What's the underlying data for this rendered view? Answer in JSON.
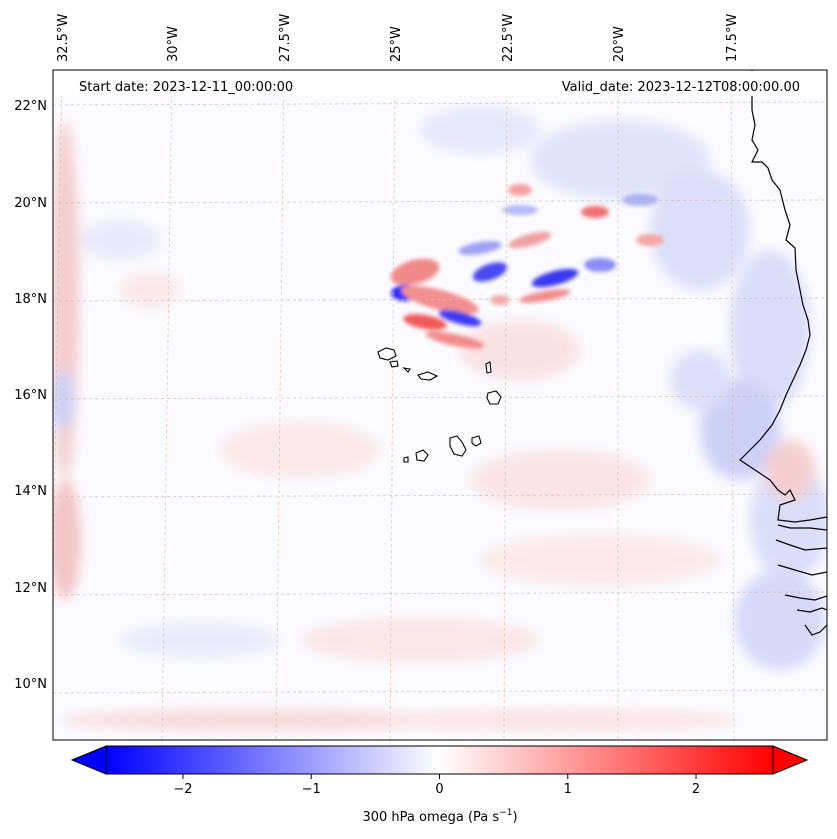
{
  "header": {
    "start_label": "Start date: 2023-12-11_00:00:00",
    "valid_label": "Valid_date: 2023-12-12T08:00:00.00"
  },
  "axes": {
    "lon_labels": [
      "32.5°W",
      "30°W",
      "27.5°W",
      "25°W",
      "22.5°W",
      "20°W",
      "17.5°W"
    ],
    "lat_labels": [
      "22°N",
      "20°N",
      "18°N",
      "16°N",
      "14°N",
      "12°N",
      "10°N"
    ]
  },
  "colorbar": {
    "tick_labels": [
      "−2",
      "−1",
      "0",
      "1",
      "2"
    ],
    "ticks": [
      -2,
      -1,
      0,
      1,
      2
    ],
    "range": [
      -2.6,
      2.6
    ],
    "label_main": "300 hPa omega (Pa s",
    "label_sup": "−1",
    "label_end": ")",
    "colors": {
      "neg": "#0000ff",
      "mid": "#ffffff",
      "pos": "#ff0000"
    }
  },
  "colors": {
    "coast": "#000000",
    "grid": "#d8b8a8",
    "frame": "#000000"
  }
}
